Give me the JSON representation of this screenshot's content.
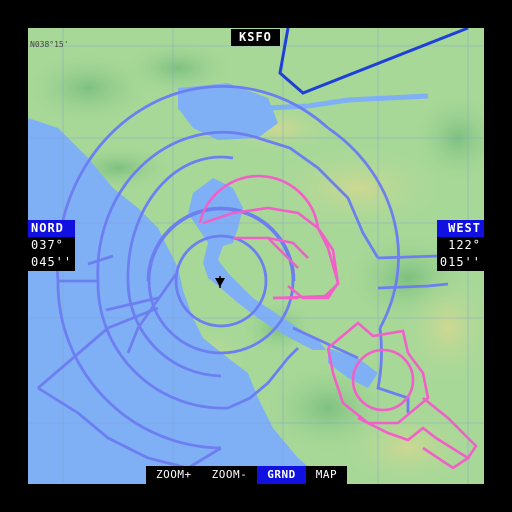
{
  "title": "KSFO",
  "latitude": {
    "label": "NORD",
    "degrees": "037°",
    "minutes": "045''"
  },
  "longitude": {
    "label": "WEST",
    "degrees": "122°",
    "minutes": "015''"
  },
  "grid_label": "N038°15'",
  "toolbar": [
    {
      "label": "ZOOM+",
      "active": false
    },
    {
      "label": "ZOOM-",
      "active": false
    },
    {
      "label": "GRND",
      "active": true
    },
    {
      "label": "MAP",
      "active": false
    }
  ],
  "colors": {
    "water": "#7fb0f5",
    "land": "#a8d898",
    "airspace_class_b": "#6d7ff0",
    "airspace_class_c": "#f060c8",
    "restricted_area": "#1e40d8",
    "toolbar_active": "#1010e0"
  },
  "airport_symbol": "aircraft-position-icon"
}
